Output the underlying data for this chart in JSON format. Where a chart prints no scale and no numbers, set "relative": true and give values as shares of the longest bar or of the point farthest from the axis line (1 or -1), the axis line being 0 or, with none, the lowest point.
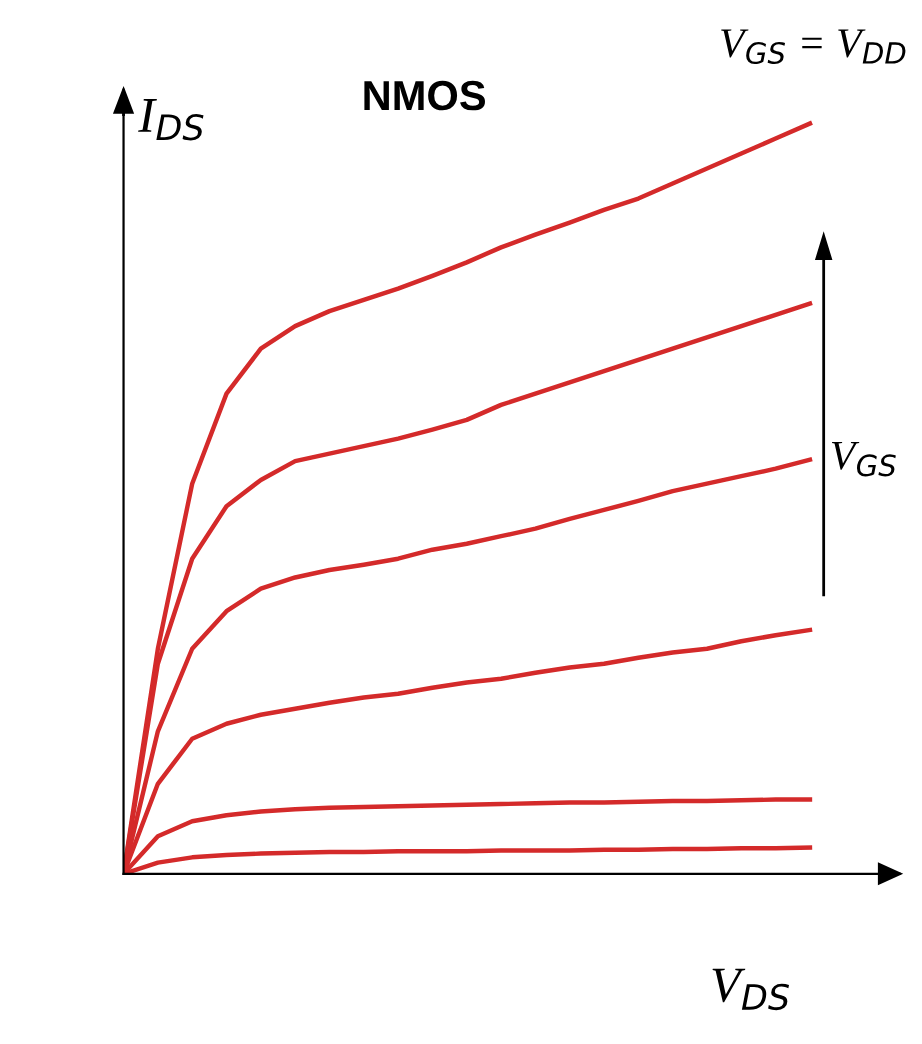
{
  "chart_data": {
    "type": "line",
    "relative": true,
    "title": "NMOS",
    "xlabel": "V$_{DS}$",
    "ylabel": "I$_{DS}$",
    "annotations": [
      "V$_{GS}$ = V$_{DD}$",
      "V$_{GS}$"
    ],
    "categories": [
      null,
      null,
      null,
      null,
      null,
      null,
      null,
      null,
      null,
      null,
      null,
      null,
      null,
      null,
      null,
      null,
      null,
      null,
      null,
      null,
      null
    ],
    "series": [
      {
        "color": "#d42a2a",
        "values": [
          0,
          0.3,
          0.52,
          0.64,
          0.7,
          0.73,
          0.75,
          0.765,
          0.78,
          0.797,
          0.815,
          0.835,
          0.852,
          0.868,
          0.885,
          0.9,
          0.92,
          0.94,
          0.96,
          0.98,
          1
        ]
      },
      {
        "color": "#d42a2a",
        "values": [
          0,
          0.28,
          0.42,
          0.49,
          0.525,
          0.55,
          0.56,
          0.57,
          0.58,
          0.592,
          0.605,
          0.625,
          0.64,
          0.655,
          0.67,
          0.685,
          0.7,
          0.715,
          0.73,
          0.745,
          0.76
        ]
      },
      {
        "color": "#d42a2a",
        "values": [
          0,
          0.19,
          0.3,
          0.35,
          0.38,
          0.395,
          0.405,
          0.412,
          0.42,
          0.432,
          0.44,
          0.45,
          0.46,
          0.473,
          0.485,
          0.497,
          0.51,
          0.52,
          0.53,
          0.54,
          0.552
        ]
      },
      {
        "color": "#d42a2a",
        "values": [
          0,
          0.12,
          0.18,
          0.2,
          0.212,
          0.22,
          0.228,
          0.235,
          0.24,
          0.248,
          0.255,
          0.26,
          0.268,
          0.275,
          0.28,
          0.288,
          0.295,
          0.3,
          0.31,
          0.318,
          0.325
        ]
      },
      {
        "color": "#d42a2a",
        "values": [
          0,
          0.05,
          0.07,
          0.078,
          0.083,
          0.086,
          0.088,
          0.089,
          0.09,
          0.091,
          0.092,
          0.093,
          0.094,
          0.095,
          0.095,
          0.096,
          0.097,
          0.097,
          0.098,
          0.099,
          0.099
        ]
      },
      {
        "color": "#d42a2a",
        "values": [
          0,
          0.015,
          0.022,
          0.025,
          0.027,
          0.028,
          0.029,
          0.029,
          0.03,
          0.03,
          0.03,
          0.031,
          0.031,
          0.031,
          0.032,
          0.032,
          0.033,
          0.033,
          0.034,
          0.034,
          0.035
        ]
      }
    ],
    "legend": false,
    "marker": "none",
    "line_style": "solid"
  }
}
